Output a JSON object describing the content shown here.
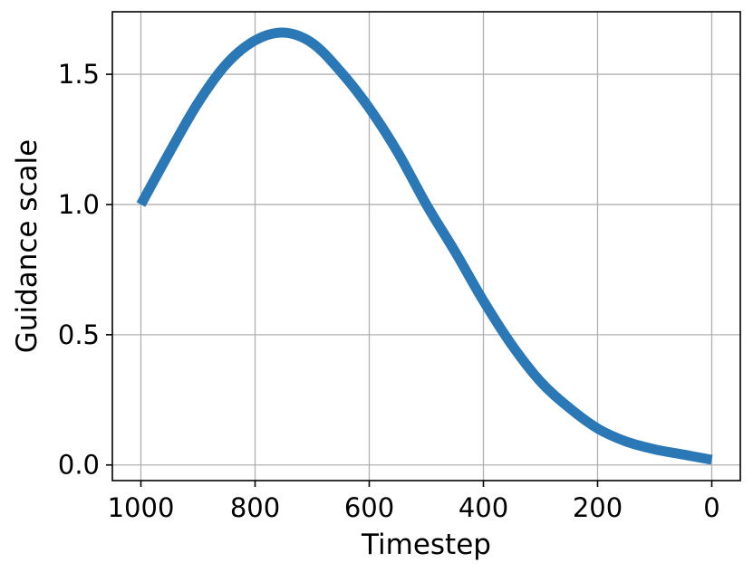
{
  "chart_data": {
    "type": "line",
    "title": "",
    "xlabel": "Timestep",
    "ylabel": "Guidance scale",
    "xlim": [
      1050,
      -50
    ],
    "ylim": [
      -0.06,
      1.74
    ],
    "x_inverted": true,
    "grid": true,
    "x_ticks": [
      1000,
      800,
      600,
      400,
      200,
      0
    ],
    "x_tick_labels": [
      "1000",
      "800",
      "600",
      "400",
      "200",
      "0"
    ],
    "y_ticks": [
      0.0,
      0.5,
      1.0,
      1.5
    ],
    "y_tick_labels": [
      "0.0",
      "0.5",
      "1.0",
      "1.5"
    ],
    "colors": {
      "series": "#2a78b6"
    },
    "series": [
      {
        "x": [
          1000,
          950,
          900,
          850,
          800,
          750,
          700,
          650,
          600,
          550,
          500,
          450,
          400,
          350,
          300,
          250,
          200,
          150,
          100,
          50,
          0
        ],
        "values": [
          1.0,
          1.2,
          1.39,
          1.54,
          1.63,
          1.66,
          1.62,
          1.51,
          1.37,
          1.2,
          1.0,
          0.82,
          0.63,
          0.46,
          0.32,
          0.22,
          0.14,
          0.09,
          0.06,
          0.04,
          0.02
        ]
      }
    ]
  }
}
